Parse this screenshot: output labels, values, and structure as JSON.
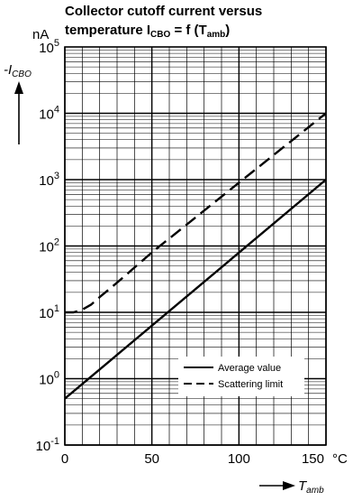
{
  "chart_data": {
    "type": "line",
    "title_line1": "Collector cutoff current versus",
    "title_line2": "temperature I",
    "title_sub": "CBO",
    "title_line2_rest": " = f (T",
    "title_sub2": "amb",
    "title_end": ")",
    "y_unit": "nA",
    "ylabel": "-I",
    "ylabel_sub": "CBO",
    "xlabel": "T",
    "xlabel_sub": "amb",
    "x_unit": "°C",
    "y_scale": "log",
    "xlim": [
      0,
      150
    ],
    "ylim": [
      0.1,
      100000
    ],
    "grid": true,
    "x_ticks": [
      {
        "value": 0,
        "label": "0"
      },
      {
        "value": 50,
        "label": "50"
      },
      {
        "value": 100,
        "label": "100"
      },
      {
        "value": 150,
        "label": "150"
      }
    ],
    "y_ticks": [
      {
        "value": 0.1,
        "base": "10",
        "exp": "-1"
      },
      {
        "value": 1,
        "base": "10",
        "exp": "0"
      },
      {
        "value": 10,
        "base": "10",
        "exp": "1"
      },
      {
        "value": 100,
        "base": "10",
        "exp": "2"
      },
      {
        "value": 1000,
        "base": "10",
        "exp": "3"
      },
      {
        "value": 10000,
        "base": "10",
        "exp": "4"
      },
      {
        "value": 100000,
        "base": "10",
        "exp": "5"
      }
    ],
    "series": [
      {
        "name": "Average value",
        "style": "solid",
        "points": [
          [
            0,
            0.5
          ],
          [
            150,
            1000
          ]
        ]
      },
      {
        "name": "Scattering limit",
        "style": "dashed",
        "points": [
          [
            0,
            10
          ],
          [
            5,
            10
          ],
          [
            10,
            11
          ],
          [
            15,
            13
          ],
          [
            20,
            17
          ],
          [
            30,
            28
          ],
          [
            50,
            80
          ],
          [
            100,
            900
          ],
          [
            150,
            10000
          ]
        ]
      }
    ],
    "legend_position": "bottom-right"
  }
}
